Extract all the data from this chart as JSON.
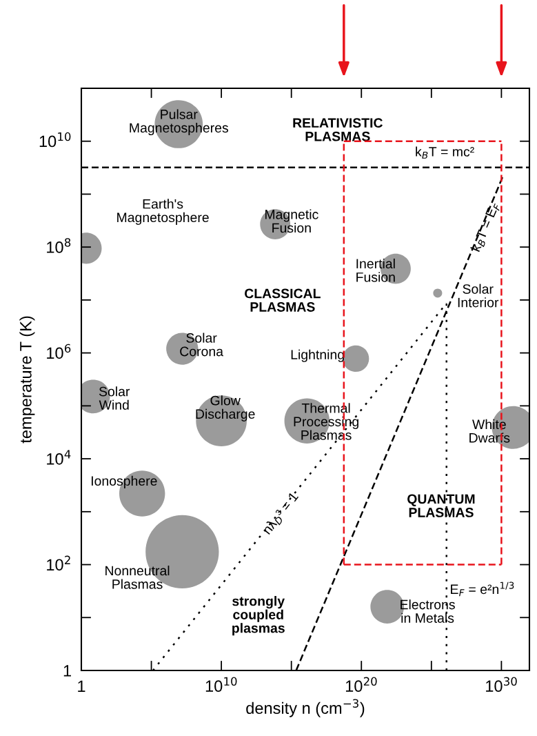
{
  "chart_data": {
    "type": "bubble",
    "xlabel": "density n (cm$^{−3}$)",
    "ylabel": "temperature T (K)",
    "log": "xy",
    "xlim": [
      1,
      1e+32
    ],
    "ylim": [
      1,
      100000000000.0
    ],
    "xticks": [
      1,
      {
        "value": 100000.0,
        "label": null
      },
      {
        "value": 10000000000.0,
        "label": "10$^{10}$"
      },
      {
        "value": 1000000000000000.0,
        "label": null
      },
      {
        "value": 1e+20,
        "label": "10$^{20}$"
      },
      {
        "value": 1e+25,
        "label": null
      },
      {
        "value": 1e+30,
        "label": "10$^{30}$"
      }
    ],
    "yticks": [
      1,
      {
        "value": 10.0,
        "label": null
      },
      {
        "value": 100.0,
        "label": "10$^{2}$"
      },
      {
        "value": 1000.0,
        "label": null
      },
      {
        "value": 10000.0,
        "label": "10$^{4}$"
      },
      {
        "value": 100000.0,
        "label": null
      },
      {
        "value": 1000000.0,
        "label": "10$^{6}$"
      },
      {
        "value": 10000000.0,
        "label": null
      },
      {
        "value": 100000000.0,
        "label": "10$^{8}$"
      },
      {
        "value": 1000000000.0,
        "label": null
      },
      {
        "value": 10000000000.0,
        "label": "10$^{10}$"
      }
    ],
    "series": [
      {
        "type": "bubble",
        "color": "#7a7a7a",
        "x": [
          9000000.0,
          2.2,
          70000000000000.0,
          2.8e+22,
          2.8e+25,
          16000000.0,
          4e+19,
          7,
          10000000000.0,
          1.3e+16,
          7e+30,
          22000.0,
          16000000.0,
          7e+21
        ],
        "values": [
          21000000000.0,
          95000000.0,
          270000000.0,
          39000000.0,
          13500000.0,
          1200000.0,
          780000.0,
          150000.0,
          52000.0,
          52000.0,
          39000.0,
          2200.0,
          175,
          16
        ],
        "sizes": [
          0.43,
          0.18,
          0.17,
          0.17,
          0.015,
          0.19,
          0.13,
          0.21,
          0.48,
          0.38,
          0.34,
          0.39,
          1,
          0.21
        ],
        "value_labels": [
          "Pulsar\nMagnetospheres",
          "Earth's\nMagnetosphere",
          "Magnetic\nFusion",
          "Inertial\nFusion",
          "Solar\nInterior",
          "Solar\nCorona",
          "Lightning",
          "Solar\nWind",
          "Glow\nDischarge",
          "Thermal\nProcessing\nPlasmas",
          "White\nDwarfs",
          "Ionosphere",
          "Nonneutral\nPlasmas",
          "Electrons\nin Metals"
        ]
      },
      {
        "type": "line",
        "color": "#000000",
        "line_style": "dashed",
        "x": [
          1,
          1e+32
        ],
        "values": [
          3200000000.0,
          3200000000.0
        ]
      },
      {
        "type": "line",
        "color": "#000000",
        "line_style": "dashed",
        "x": [
          2200000000000000.0,
          1.3e+30
        ],
        "values": [
          1,
          2200000000.0
        ]
      },
      {
        "type": "line",
        "color": "#000000",
        "line_style": "dotted",
        "x": [
          130000.0,
          1.2e+26
        ],
        "values": [
          1,
          8700000.0
        ]
      },
      {
        "type": "line",
        "color": "#000000",
        "line_style": "dotted",
        "x": [
          1.2e+26,
          1.2e+26
        ],
        "values": [
          1,
          8700000.0
        ]
      },
      {
        "type": "line",
        "color": "#e8141c",
        "line_style": "dashed",
        "x": [
          5.6e+18,
          1e+30
        ],
        "values": [
          10000000000.0,
          10000000000.0
        ]
      },
      {
        "type": "line",
        "color": "#e8141c",
        "line_style": "dashed",
        "x": [
          1e+30,
          1e+30
        ],
        "values": [
          100.0,
          10000000000.0
        ]
      },
      {
        "type": "line",
        "color": "#e8141c",
        "line_style": "dashed",
        "x": [
          5.6e+18,
          1e+30
        ],
        "values": [
          100.0,
          100.0
        ]
      },
      {
        "type": "line",
        "color": "#e8141c",
        "line_style": "dashed",
        "x": [
          5.6e+18,
          5.6e+18
        ],
        "values": [
          100.0,
          10000000000.0
        ]
      }
    ],
    "annotations": [
      "RELATIVISTIC\nPLASMAS",
      "k$_{B}$T = mc²",
      "k$_{B}$T = E$_{F}$",
      "CLASSICAL\nPLASMAS",
      "QUANTUM\nPLASMAS",
      "nλ$_{D}$³ = 1",
      "E$_{F}$ = e²n$^{1/3}$",
      "strongly\ncoupled\nplasmas"
    ]
  }
}
